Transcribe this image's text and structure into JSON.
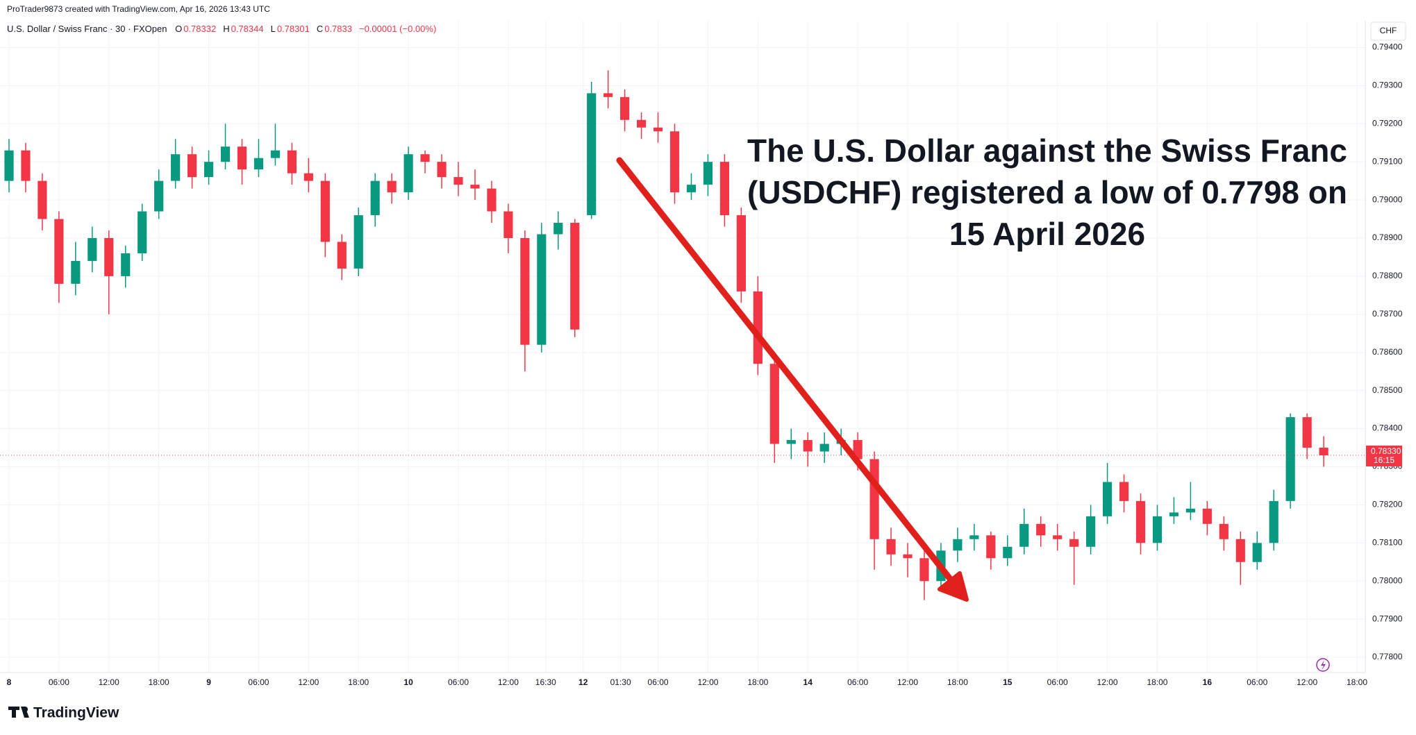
{
  "header": {
    "credit": "ProTrader9873 created with TradingView.com, Apr 16, 2026 13:43 UTC"
  },
  "chart_data": {
    "type": "candlestick",
    "legend": {
      "symbol": "U.S. Dollar / Swiss Franc · 30 · FXOpen",
      "fields": [
        {
          "key": "O",
          "value": 0.78332
        },
        {
          "key": "H",
          "value": 0.78344
        },
        {
          "key": "L",
          "value": 0.78301
        },
        {
          "key": "C",
          "value": 0.7833
        }
      ],
      "change": "−0.00001 (−0.00%)"
    },
    "currency": "CHF",
    "annotation": [
      "The U.S. Dollar against the Swiss Franc",
      "(USDCHF) registered a low of 0.7798 on",
      "15 April 2026"
    ],
    "x": [
      0,
      4,
      8,
      12,
      16,
      20,
      24,
      28,
      32,
      36,
      40,
      44,
      48,
      52,
      56,
      60,
      64,
      68,
      72,
      76,
      80,
      84,
      88,
      92,
      96,
      100,
      104,
      108,
      112,
      116,
      120,
      124,
      128,
      132,
      136,
      140,
      144,
      148,
      152,
      156,
      160,
      164,
      168,
      172,
      176,
      180,
      184,
      188,
      192,
      196,
      200,
      204,
      208,
      212,
      216,
      220,
      224,
      228,
      232,
      236,
      240,
      244,
      248,
      252,
      256,
      260,
      264,
      268,
      272,
      276,
      280,
      284,
      288,
      292,
      296,
      300,
      304,
      308,
      312,
      316
    ],
    "open": [
      0.7905,
      0.7913,
      0.7905,
      0.7895,
      0.7878,
      0.7884,
      0.789,
      0.788,
      0.7886,
      0.7897,
      0.7905,
      0.7912,
      0.7906,
      0.791,
      0.7914,
      0.7908,
      0.7911,
      0.7913,
      0.7907,
      0.7905,
      0.7889,
      0.7882,
      0.7896,
      0.7905,
      0.7902,
      0.7912,
      0.791,
      0.7906,
      0.7904,
      0.7903,
      0.7897,
      0.789,
      0.7862,
      0.7891,
      0.7894,
      0.7896,
      0.7928,
      0.7927,
      0.7921,
      0.7919,
      0.7918,
      0.7902,
      0.7904,
      0.791,
      0.7896,
      0.7876,
      0.7857,
      0.7836,
      0.7837,
      0.7834,
      0.7836,
      0.7837,
      0.7832,
      0.7811,
      0.7807,
      0.7806,
      0.78,
      0.7808,
      0.7811,
      0.7812,
      0.7806,
      0.7809,
      0.7815,
      0.7812,
      0.7811,
      0.7809,
      0.7817,
      0.7826,
      0.7821,
      0.781,
      0.7817,
      0.7818,
      0.7819,
      0.7815,
      0.7811,
      0.7805,
      0.781,
      0.7821,
      0.7843,
      0.7835
    ],
    "high": [
      0.7916,
      0.7915,
      0.7907,
      0.7897,
      0.7889,
      0.7893,
      0.7892,
      0.7888,
      0.7899,
      0.7908,
      0.7916,
      0.7914,
      0.7913,
      0.792,
      0.7916,
      0.7916,
      0.792,
      0.7915,
      0.7911,
      0.7907,
      0.7891,
      0.7898,
      0.7907,
      0.7907,
      0.7914,
      0.7913,
      0.7912,
      0.791,
      0.7908,
      0.7905,
      0.7899,
      0.7892,
      0.7894,
      0.7897,
      0.7895,
      0.7931,
      0.7934,
      0.7929,
      0.7923,
      0.7923,
      0.792,
      0.7907,
      0.7912,
      0.7912,
      0.7898,
      0.788,
      0.7859,
      0.784,
      0.7839,
      0.7839,
      0.784,
      0.7839,
      0.7834,
      0.7814,
      0.781,
      0.7808,
      0.781,
      0.7814,
      0.7815,
      0.7813,
      0.7812,
      0.7819,
      0.7817,
      0.7815,
      0.7813,
      0.782,
      0.7831,
      0.7828,
      0.7823,
      0.782,
      0.7822,
      0.7826,
      0.7821,
      0.7817,
      0.7813,
      0.7813,
      0.7824,
      0.7844,
      0.7844,
      0.7838
    ],
    "low": [
      0.7902,
      0.7902,
      0.7892,
      0.7873,
      0.7875,
      0.7881,
      0.787,
      0.7877,
      0.7884,
      0.7895,
      0.7903,
      0.7903,
      0.7904,
      0.7908,
      0.7904,
      0.7906,
      0.7909,
      0.7904,
      0.7902,
      0.7885,
      0.7879,
      0.788,
      0.7893,
      0.7899,
      0.79,
      0.7907,
      0.7903,
      0.7901,
      0.79,
      0.7894,
      0.7886,
      0.7855,
      0.786,
      0.7887,
      0.7864,
      0.7895,
      0.7924,
      0.7918,
      0.7916,
      0.7915,
      0.7899,
      0.79,
      0.7901,
      0.7893,
      0.7873,
      0.7854,
      0.7831,
      0.7832,
      0.783,
      0.7831,
      0.7833,
      0.7829,
      0.7803,
      0.7804,
      0.7801,
      0.7795,
      0.7798,
      0.7805,
      0.7808,
      0.7803,
      0.7804,
      0.7807,
      0.7809,
      0.7808,
      0.7799,
      0.7807,
      0.7815,
      0.7818,
      0.7807,
      0.7808,
      0.7815,
      0.7816,
      0.7812,
      0.7808,
      0.7799,
      0.7803,
      0.7808,
      0.7819,
      0.7832,
      0.783
    ],
    "close": [
      0.7913,
      0.7905,
      0.7895,
      0.7878,
      0.7884,
      0.789,
      0.788,
      0.7886,
      0.7897,
      0.7905,
      0.7912,
      0.7906,
      0.791,
      0.7914,
      0.7908,
      0.7911,
      0.7913,
      0.7907,
      0.7905,
      0.7889,
      0.7882,
      0.7896,
      0.7905,
      0.7902,
      0.7912,
      0.791,
      0.7906,
      0.7904,
      0.7903,
      0.7897,
      0.789,
      0.7862,
      0.7891,
      0.7894,
      0.7866,
      0.7928,
      0.7927,
      0.7921,
      0.7919,
      0.7918,
      0.7902,
      0.7904,
      0.791,
      0.7896,
      0.7876,
      0.7857,
      0.7836,
      0.7837,
      0.7834,
      0.7836,
      0.7837,
      0.7832,
      0.7811,
      0.7807,
      0.7806,
      0.78,
      0.7808,
      0.7811,
      0.7812,
      0.7806,
      0.7809,
      0.7815,
      0.7812,
      0.7811,
      0.7809,
      0.7817,
      0.7826,
      0.7821,
      0.781,
      0.7817,
      0.7818,
      0.7819,
      0.7815,
      0.7811,
      0.7805,
      0.781,
      0.7821,
      0.7843,
      0.7835,
      0.7833
    ],
    "up_color": "#089981",
    "down_color": "#f23645",
    "last_price": {
      "value": 0.7833,
      "label": "0.78330"
    },
    "countdown": "16:15",
    "xlim": [
      0,
      326
    ],
    "ylim": [
      0.7776,
      0.7947
    ],
    "yticks": [
      {
        "value": 0.778,
        "label": "0.77800"
      },
      {
        "value": 0.779,
        "label": "0.77900"
      },
      {
        "value": 0.78,
        "label": "0.78000"
      },
      {
        "value": 0.781,
        "label": "0.78100"
      },
      {
        "value": 0.782,
        "label": "0.78200"
      },
      {
        "value": 0.783,
        "label": "0.78300"
      },
      {
        "value": 0.784,
        "label": "0.78400"
      },
      {
        "value": 0.785,
        "label": "0.78500"
      },
      {
        "value": 0.786,
        "label": "0.78600"
      },
      {
        "value": 0.787,
        "label": "0.78700"
      },
      {
        "value": 0.788,
        "label": "0.78800"
      },
      {
        "value": 0.789,
        "label": "0.78900"
      },
      {
        "value": 0.79,
        "label": "0.79000"
      },
      {
        "value": 0.791,
        "label": "0.79100"
      },
      {
        "value": 0.792,
        "label": "0.79200"
      },
      {
        "value": 0.793,
        "label": "0.79300"
      },
      {
        "value": 0.794,
        "label": "0.79400"
      }
    ],
    "xticks": [
      {
        "value": 0,
        "label": "8"
      },
      {
        "value": 12,
        "label": "06:00"
      },
      {
        "value": 24,
        "label": "12:00"
      },
      {
        "value": 36,
        "label": "18:00"
      },
      {
        "value": 48,
        "label": "9"
      },
      {
        "value": 60,
        "label": "06:00"
      },
      {
        "value": 72,
        "label": "12:00"
      },
      {
        "value": 84,
        "label": "18:00"
      },
      {
        "value": 96,
        "label": "10"
      },
      {
        "value": 108,
        "label": "06:00"
      },
      {
        "value": 120,
        "label": "12:00"
      },
      {
        "value": 129,
        "label": "16:30"
      },
      {
        "value": 138,
        "label": "12"
      },
      {
        "value": 147,
        "label": "01:30"
      },
      {
        "value": 156,
        "label": "06:00"
      },
      {
        "value": 168,
        "label": "12:00"
      },
      {
        "value": 180,
        "label": "18:00"
      },
      {
        "value": 192,
        "label": "14"
      },
      {
        "value": 204,
        "label": "06:00"
      },
      {
        "value": 216,
        "label": "12:00"
      },
      {
        "value": 228,
        "label": "18:00"
      },
      {
        "value": 240,
        "label": "15"
      },
      {
        "value": 252,
        "label": "06:00"
      },
      {
        "value": 264,
        "label": "12:00"
      },
      {
        "value": 276,
        "label": "18:00"
      },
      {
        "value": 288,
        "label": "16"
      },
      {
        "value": 300,
        "label": "06:00"
      },
      {
        "value": 312,
        "label": "12:00"
      },
      {
        "value": 324,
        "label": "18:00"
      }
    ],
    "grid": true
  },
  "footer": {
    "logo": "TradingView"
  }
}
